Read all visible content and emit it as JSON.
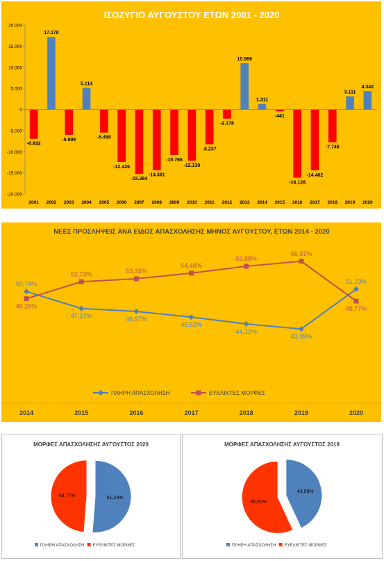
{
  "colors": {
    "panel_bg": "#FFC000",
    "positive": "#4F81BD",
    "negative": "#FF0000",
    "line_full": "#4F81BD",
    "line_flex": "#C0504D",
    "pie_full": "#4F81BD",
    "pie_flex": "#FF3300"
  },
  "chart_data": [
    {
      "type": "bar",
      "title": "ΙΣΟΖΥΓΙΟ  ΑΥΓΟΥΣΤΟΥ ΕΤΩΝ 2001 - 2020",
      "categories": [
        "2001",
        "2002",
        "2003",
        "2004",
        "2005",
        "2006",
        "2007",
        "2008",
        "2009",
        "2010",
        "2011",
        "2012",
        "2013",
        "2014",
        "2015",
        "2016",
        "2017",
        "2018",
        "2019",
        "2020"
      ],
      "values": [
        -6932,
        17170,
        -5999,
        5114,
        -5458,
        -12426,
        -15264,
        -14361,
        -10765,
        -12130,
        -8237,
        -2178,
        10969,
        1311,
        -441,
        -16128,
        -14402,
        -7748,
        3111,
        4342
      ],
      "labels": [
        "-6.932",
        "17.170",
        "-5.999",
        "5.114",
        "-5.458",
        "-12.426",
        "-15.264",
        "-14.361",
        "-10.765",
        "-12.130",
        "-8.237",
        "-2.178",
        "10.969",
        "1.311",
        "-441",
        "-16.128",
        "-14.402",
        "-7.748",
        "3.111",
        "4.342"
      ],
      "yticks": [
        "20.000",
        "15.000",
        "10.000",
        "5.000",
        "0",
        "-5.000",
        "-10.000",
        "-15.000",
        "-20.000"
      ],
      "ylim": [
        -20000,
        20000
      ],
      "grid": false
    },
    {
      "type": "line",
      "title": "ΝΕΕΣ ΠΡΟΣΛΗΨΕΙΣ ΑΝΑ ΕΙΔΟΣ ΑΠΑΣΧΟΛΗΣΗΣ ΜΗΝΟΣ ΑΥΓΟΥΣΤΟΥ, ΕΤΩΝ 2014 - 2020",
      "x": [
        "2014",
        "2015",
        "2016",
        "2017",
        "2018",
        "2019",
        "2020"
      ],
      "series": [
        {
          "name": "ΠΛΗΡΗ ΑΠΑΣΧΟΛΗΣΗ",
          "values": [
            50.74,
            47.27,
            46.67,
            45.52,
            44.12,
            43.09,
            51.23
          ],
          "labels": [
            "50,74%",
            "47,27%",
            "46,67%",
            "45,52%",
            "44,12%",
            "43,09%",
            "51,23%"
          ]
        },
        {
          "name": "ΕΥΕΛΙΚΤΕΣ ΜΟΡΦΕΣ",
          "values": [
            49.26,
            52.73,
            53.33,
            54.48,
            55.88,
            56.91,
            48.77
          ],
          "labels": [
            "49,26%",
            "52,73%",
            "53,33%",
            "54,48%",
            "55,88%",
            "56,91%",
            "48,77%"
          ]
        }
      ],
      "legend": "bottom"
    },
    {
      "type": "pie",
      "title": "ΜΟΡΦΕΣ ΑΠΑΣΧΟΛΗΣΗΣ ΑΥΓΟΥΣΤΟΣ 2020",
      "slices": [
        {
          "name": "ΠΛΗΡΗ ΑΠΑΣΧΟΛΗΣΗ",
          "value": 51.23,
          "label": "51,23%"
        },
        {
          "name": "ΕΥΕΛΙΚΤΕΣ  ΜΟΡΦΕΣ",
          "value": 48.77,
          "label": "48,77%"
        }
      ],
      "legend": "bottom"
    },
    {
      "type": "pie",
      "title": "ΜΟΡΦΕΣ ΑΠΑΣΧΟΛΗΣΗΣ ΑΥΓΟΥΣΤΟΣ 2019",
      "slices": [
        {
          "name": "ΠΛΗΡΗ ΑΠΑΣΧΟΛΗΣΗ",
          "value": 43.09,
          "label": "43,09%"
        },
        {
          "name": "ΕΥΕΛΙΚΤΕΣ  ΜΟΡΦΕΣ",
          "value": 56.91,
          "label": "56,91%"
        }
      ],
      "legend": "bottom"
    }
  ]
}
